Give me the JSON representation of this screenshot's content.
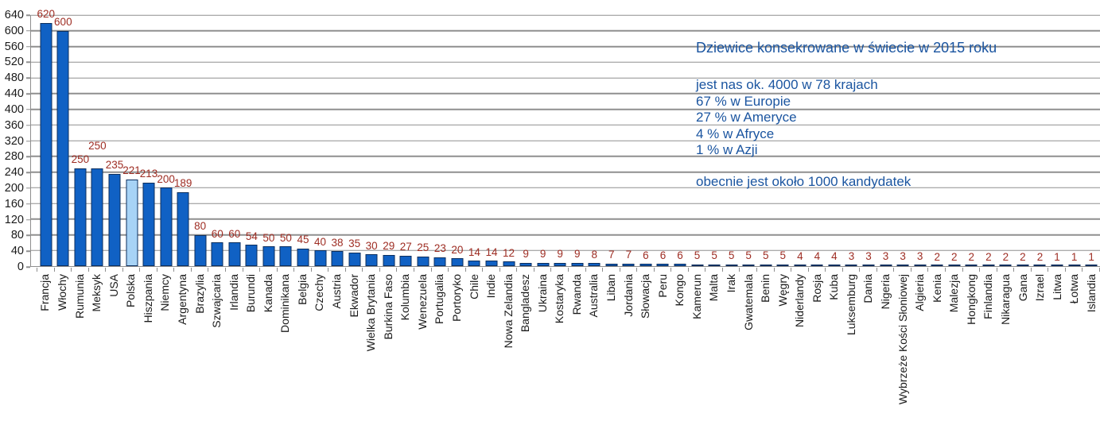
{
  "chart_data": {
    "type": "bar",
    "title": "Dziewice konsekrowane w świecie w 2015 roku",
    "info_lines": [
      "jest nas ok. 4000 w 78 krajach",
      "67 % w Europie",
      "27 % w Ameryce",
      "4 % w Afryce",
      "1 % w Azji"
    ],
    "note": "obecnie jest około 1000 kandydatek",
    "categories": [
      "Francja",
      "Włochy",
      "Rumunia",
      "Meksyk",
      "USA",
      "Polska",
      "Hiszpania",
      "Niemcy",
      "Argentyna",
      "Brazylia",
      "Szwajcaria",
      "Irlandia",
      "Burundi",
      "Kanada",
      "Dominikana",
      "Belgia",
      "Czechy",
      "Austria",
      "Ekwador",
      "Wielka Brytania",
      "Burkina Faso",
      "Kolumbia",
      "Wenezuela",
      "Portugalia",
      "Portoryko",
      "Chile",
      "Indie",
      "Nowa Zelandia",
      "Bangladesz",
      "Ukraina",
      "Kostaryka",
      "Rwanda",
      "Australia",
      "Liban",
      "Jordania",
      "Słowacja",
      "Peru",
      "Kongo",
      "Kamerun",
      "Malta",
      "Irak",
      "Gwatemala",
      "Benin",
      "Węgry",
      "Niderlandy",
      "Rosja",
      "Kuba",
      "Luksemburg",
      "Dania",
      "Nigeria",
      "Wybrzeże Kości Słoniowej",
      "Algieria",
      "Kenia",
      "Malezja",
      "Hongkong",
      "Finlandia",
      "Nikaragua",
      "Gana",
      "Izrael",
      "Litwa",
      "Łotwa",
      "Islandia"
    ],
    "values": [
      620,
      600,
      250,
      250,
      235,
      221,
      213,
      200,
      189,
      80,
      60,
      60,
      54,
      50,
      50,
      45,
      40,
      38,
      35,
      30,
      29,
      27,
      25,
      23,
      20,
      14,
      14,
      12,
      9,
      9,
      9,
      9,
      8,
      7,
      7,
      6,
      6,
      6,
      5,
      5,
      5,
      5,
      5,
      5,
      4,
      4,
      4,
      3,
      3,
      3,
      3,
      3,
      2,
      2,
      2,
      2,
      2,
      2,
      2,
      1,
      1,
      1
    ],
    "highlighted_category": "Polska",
    "xlabel": "",
    "ylabel": "",
    "ylim": [
      0,
      640
    ],
    "ytick_step": 40,
    "grid": "horizontal",
    "legend": "none",
    "colors": {
      "bar_fill": "#1061c4",
      "bar_border": "#0b2e5e",
      "highlight_fill": "#a7d3f6",
      "value_label": "#9e2d23",
      "annotation_text": "#1b55a0",
      "gridline": "#8f8f8f",
      "axis_text": "#1a1a1a"
    }
  }
}
